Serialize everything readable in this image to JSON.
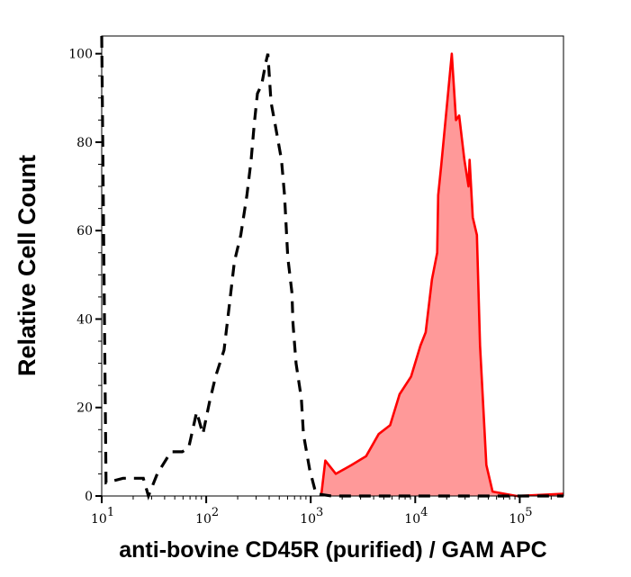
{
  "chart_data": {
    "type": "area",
    "title": "",
    "xlabel": "anti-bovine CD45R (purified) / GAM APC",
    "ylabel": "Relative Cell Count",
    "x_scale": "log",
    "xlim": [
      10,
      262144
    ],
    "ylim": [
      0,
      104
    ],
    "x_ticks": [
      10,
      100,
      1000,
      10000,
      100000
    ],
    "x_tick_labels": [
      {
        "base": "10",
        "exp": "1"
      },
      {
        "base": "10",
        "exp": "2"
      },
      {
        "base": "10",
        "exp": "3"
      },
      {
        "base": "10",
        "exp": "4"
      },
      {
        "base": "10",
        "exp": "5"
      }
    ],
    "y_ticks": [
      0,
      20,
      40,
      60,
      80,
      100
    ],
    "y_tick_labels": [
      "0",
      "20",
      "40",
      "60",
      "80",
      "100"
    ],
    "grid": false,
    "legend": "none",
    "series": [
      {
        "style": "dashed-line",
        "color": "#000000",
        "points": [
          [
            10,
            104
          ],
          [
            11,
            3
          ],
          [
            16,
            4
          ],
          [
            25,
            4
          ],
          [
            28,
            0
          ],
          [
            34,
            5
          ],
          [
            46,
            10
          ],
          [
            59,
            10
          ],
          [
            68,
            11
          ],
          [
            81,
            19
          ],
          [
            93,
            14
          ],
          [
            107,
            21
          ],
          [
            123,
            27
          ],
          [
            148,
            33
          ],
          [
            166,
            43
          ],
          [
            186,
            53
          ],
          [
            214,
            59
          ],
          [
            245,
            68
          ],
          [
            269,
            76
          ],
          [
            288,
            84
          ],
          [
            309,
            91
          ],
          [
            339,
            93
          ],
          [
            372,
            98
          ],
          [
            389,
            100
          ],
          [
            417,
            89
          ],
          [
            457,
            84
          ],
          [
            525,
            76
          ],
          [
            562,
            68
          ],
          [
            603,
            54
          ],
          [
            661,
            46
          ],
          [
            676,
            39
          ],
          [
            724,
            30
          ],
          [
            813,
            22
          ],
          [
            851,
            14
          ],
          [
            977,
            6
          ],
          [
            1122,
            0.5
          ],
          [
            1585,
            0
          ],
          [
            262144,
            0
          ]
        ]
      },
      {
        "style": "filled",
        "color": "#ff0000",
        "fill": "#ff9999",
        "points": [
          [
            1259,
            0
          ],
          [
            1380,
            8
          ],
          [
            1738,
            5
          ],
          [
            2455,
            7
          ],
          [
            3388,
            9
          ],
          [
            4467,
            14
          ],
          [
            5754,
            16
          ],
          [
            7079,
            23
          ],
          [
            9120,
            27
          ],
          [
            11220,
            34
          ],
          [
            12589,
            37
          ],
          [
            14454,
            49
          ],
          [
            16218,
            55
          ],
          [
            16596,
            68
          ],
          [
            17783,
            75
          ],
          [
            20417,
            90
          ],
          [
            22387,
            100
          ],
          [
            24547,
            85
          ],
          [
            26303,
            86
          ],
          [
            29512,
            76
          ],
          [
            32359,
            70
          ],
          [
            33113,
            76
          ],
          [
            35481,
            63
          ],
          [
            38905,
            59
          ],
          [
            41687,
            34
          ],
          [
            47863,
            7
          ],
          [
            54954,
            1
          ],
          [
            93325,
            0
          ],
          [
            262144,
            0.5
          ]
        ]
      }
    ]
  }
}
